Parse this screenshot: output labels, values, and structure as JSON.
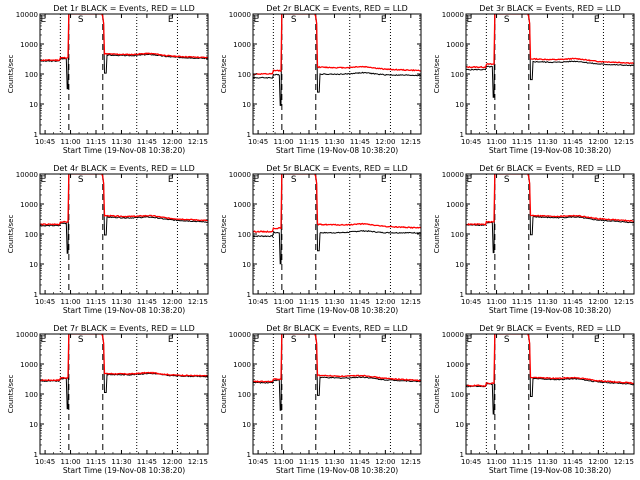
{
  "chart_data": {
    "common": {
      "type": "line",
      "y_scale": "log",
      "ylim": [
        1,
        10000
      ],
      "y_ticks": [
        1,
        10,
        100,
        1000,
        10000
      ],
      "ylabel": "Counts/sec",
      "xlabel": "Start Time (19-Nov-08 10:38:20)",
      "x_ticks": [
        "10:45",
        "11:00",
        "11:15",
        "11:30",
        "11:45",
        "12:00",
        "12:15"
      ],
      "x_tick_minutes": [
        0,
        15,
        30,
        45,
        60,
        75,
        90
      ],
      "xlim_minutes": [
        -3,
        96
      ],
      "x_origin_clock": "10:45",
      "dashed_markers_minutes": [
        14,
        34
      ],
      "dotted_markers_minutes": [
        9,
        54,
        78
      ],
      "top_marker_labels": [
        {
          "text": "E",
          "minute": -1
        },
        {
          "text": "S",
          "minute": 21
        },
        {
          "text": "E",
          "minute": 74
        }
      ],
      "colors": {
        "events": "#000000",
        "lld": "#ff0000",
        "markers": "#000000"
      }
    },
    "panels": [
      {
        "title": "Det 1r  BLACK = Events, RED = LLD",
        "events_base": 270,
        "lld_base": 290,
        "events_slope": 1.2,
        "lld_slope": 1.2,
        "post_events": 430,
        "post_lld": 470,
        "end_events": 330,
        "end_lld": 350
      },
      {
        "title": "Det 2r  BLACK = Events, RED = LLD",
        "events_base": 75,
        "lld_base": 100,
        "events_slope": 1.25,
        "lld_slope": 1.3,
        "post_events": 100,
        "post_lld": 170,
        "end_events": 90,
        "end_lld": 130
      },
      {
        "title": "Det 3r  BLACK = Events, RED = LLD",
        "events_base": 140,
        "lld_base": 170,
        "events_slope": 1.25,
        "lld_slope": 1.25,
        "post_events": 260,
        "post_lld": 320,
        "end_events": 190,
        "end_lld": 230
      },
      {
        "title": "Det 4r  BLACK = Events, RED = LLD",
        "events_base": 190,
        "lld_base": 210,
        "events_slope": 1.2,
        "lld_slope": 1.2,
        "post_events": 370,
        "post_lld": 410,
        "end_events": 250,
        "end_lld": 280
      },
      {
        "title": "Det 5r  BLACK = Events, RED = LLD",
        "events_base": 85,
        "lld_base": 120,
        "events_slope": 1.3,
        "lld_slope": 1.3,
        "post_events": 110,
        "post_lld": 210,
        "end_events": 110,
        "end_lld": 160
      },
      {
        "title": "Det 6r  BLACK = Events, RED = LLD",
        "events_base": 200,
        "lld_base": 210,
        "events_slope": 1.2,
        "lld_slope": 1.2,
        "post_events": 380,
        "post_lld": 420,
        "end_events": 240,
        "end_lld": 270
      },
      {
        "title": "Det 7r  BLACK = Events, RED = LLD",
        "events_base": 270,
        "lld_base": 290,
        "events_slope": 1.2,
        "lld_slope": 1.2,
        "post_events": 450,
        "post_lld": 480,
        "end_events": 380,
        "end_lld": 400
      },
      {
        "title": "Det 8r  BLACK = Events, RED = LLD",
        "events_base": 240,
        "lld_base": 260,
        "events_slope": 1.2,
        "lld_slope": 1.2,
        "post_events": 360,
        "post_lld": 420,
        "end_events": 260,
        "end_lld": 280
      },
      {
        "title": "Det 9r  BLACK = Events, RED = LLD",
        "events_base": 180,
        "lld_base": 190,
        "events_slope": 1.2,
        "lld_slope": 1.2,
        "post_events": 330,
        "post_lld": 360,
        "end_events": 210,
        "end_lld": 230
      }
    ]
  }
}
